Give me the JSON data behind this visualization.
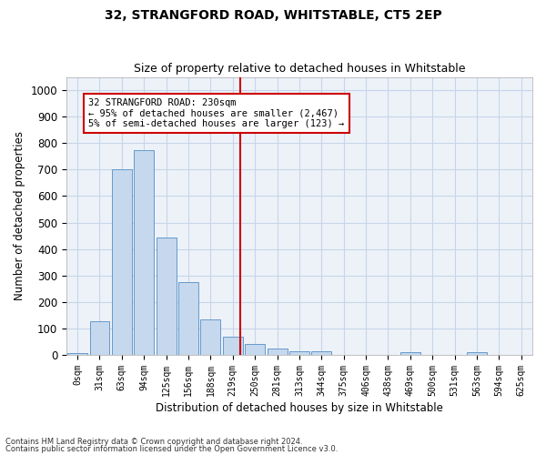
{
  "title": "32, STRANGFORD ROAD, WHITSTABLE, CT5 2EP",
  "subtitle": "Size of property relative to detached houses in Whitstable",
  "xlabel": "Distribution of detached houses by size in Whitstable",
  "ylabel": "Number of detached properties",
  "bins": [
    "0sqm",
    "31sqm",
    "63sqm",
    "94sqm",
    "125sqm",
    "156sqm",
    "188sqm",
    "219sqm",
    "250sqm",
    "281sqm",
    "313sqm",
    "344sqm",
    "375sqm",
    "406sqm",
    "438sqm",
    "469sqm",
    "500sqm",
    "531sqm",
    "563sqm",
    "594sqm",
    "625sqm"
  ],
  "values": [
    8,
    128,
    700,
    775,
    443,
    275,
    133,
    70,
    42,
    25,
    13,
    13,
    0,
    0,
    0,
    10,
    0,
    0,
    10,
    0,
    0
  ],
  "bar_color": "#c5d8ed",
  "bar_edge_color": "#6699cc",
  "annotation_text": "32 STRANGFORD ROAD: 230sqm\n← 95% of detached houses are smaller (2,467)\n5% of semi-detached houses are larger (123) →",
  "annotation_box_color": "#ffffff",
  "annotation_box_edge": "#cc0000",
  "vline_color": "#cc0000",
  "ylim": [
    0,
    1050
  ],
  "yticks": [
    0,
    100,
    200,
    300,
    400,
    500,
    600,
    700,
    800,
    900,
    1000
  ],
  "footer1": "Contains HM Land Registry data © Crown copyright and database right 2024.",
  "footer2": "Contains public sector information licensed under the Open Government Licence v3.0.",
  "background_color": "#edf2f9",
  "grid_color": "#c8d5e8"
}
